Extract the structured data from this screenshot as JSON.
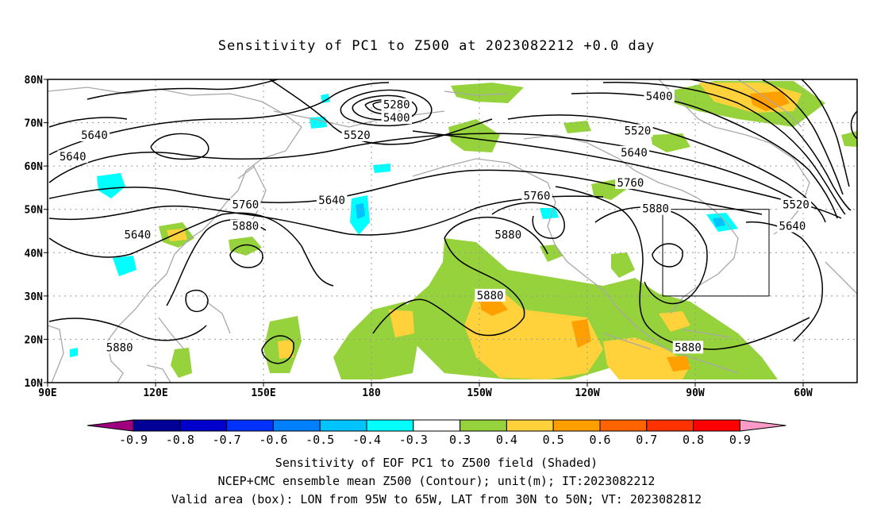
{
  "title": "Sensitivity of PC1 to Z500 at 2023082212 +0.0 day",
  "map": {
    "lon_range_east": [
      90,
      315
    ],
    "lat_range": [
      10,
      80
    ],
    "lat_ticks": [
      "10N",
      "20N",
      "30N",
      "40N",
      "50N",
      "60N",
      "70N",
      "80N"
    ],
    "lon_ticks": [
      "90E",
      "120E",
      "150E",
      "180",
      "150W",
      "120W",
      "90W",
      "60W"
    ],
    "valid_box": {
      "lon_west": -95,
      "lon_east": -65,
      "lat_south": 30,
      "lat_north": 50
    },
    "gridlines": "dotted"
  },
  "contour_labels": [
    {
      "text": "5640",
      "lon": 103,
      "lat": 67
    },
    {
      "text": "5640",
      "lon": 97,
      "lat": 62
    },
    {
      "text": "5280",
      "lon": 187,
      "lat": 74
    },
    {
      "text": "5400",
      "lon": 187,
      "lat": 71
    },
    {
      "text": "5520",
      "lon": 176,
      "lat": 67
    },
    {
      "text": "5640",
      "lon": 169,
      "lat": 52
    },
    {
      "text": "5760",
      "lon": 145,
      "lat": 51
    },
    {
      "text": "5880",
      "lon": 145,
      "lat": 46
    },
    {
      "text": "5640",
      "lon": 115,
      "lat": 44
    },
    {
      "text": "5880",
      "lon": 110,
      "lat": 18
    },
    {
      "text": "5760",
      "lon": 226,
      "lat": 53
    },
    {
      "text": "5880",
      "lon": 218,
      "lat": 44
    },
    {
      "text": "5880",
      "lon": 213,
      "lat": 30
    },
    {
      "text": "5400",
      "lon": 260,
      "lat": 76
    },
    {
      "text": "5520",
      "lon": 254,
      "lat": 68
    },
    {
      "text": "5640",
      "lon": 253,
      "lat": 63
    },
    {
      "text": "5760",
      "lon": 252,
      "lat": 56
    },
    {
      "text": "5880",
      "lon": 259,
      "lat": 50
    },
    {
      "text": "5520",
      "lon": 298,
      "lat": 51
    },
    {
      "text": "5640",
      "lon": 297,
      "lat": 46
    },
    {
      "text": "5880",
      "lon": 268,
      "lat": 18
    }
  ],
  "colorbar": {
    "colors": [
      "#a0007f",
      "#000096",
      "#0000cd",
      "#0032ff",
      "#0080ff",
      "#00c3ff",
      "#00ffff",
      "#ffffff",
      "#96d23c",
      "#ffd23c",
      "#ffa000",
      "#ff6400",
      "#ff3200",
      "#ff0000",
      "#ff9bc8"
    ],
    "labels": [
      "-0.9",
      "-0.8",
      "-0.7",
      "-0.6",
      "-0.5",
      "-0.4",
      "-0.3",
      "0.3",
      "0.4",
      "0.5",
      "0.6",
      "0.7",
      "0.8",
      "0.9"
    ]
  },
  "footer": {
    "line1": "Sensitivity of EOF PC1 to Z500 field (Shaded)",
    "line2": "NCEP+CMC ensemble mean Z500 (Contour); unit(m); IT:2023082212",
    "line3": "Valid area (box): LON from 95W to 65W, LAT from 30N to 50N; VT: 2023082812"
  }
}
